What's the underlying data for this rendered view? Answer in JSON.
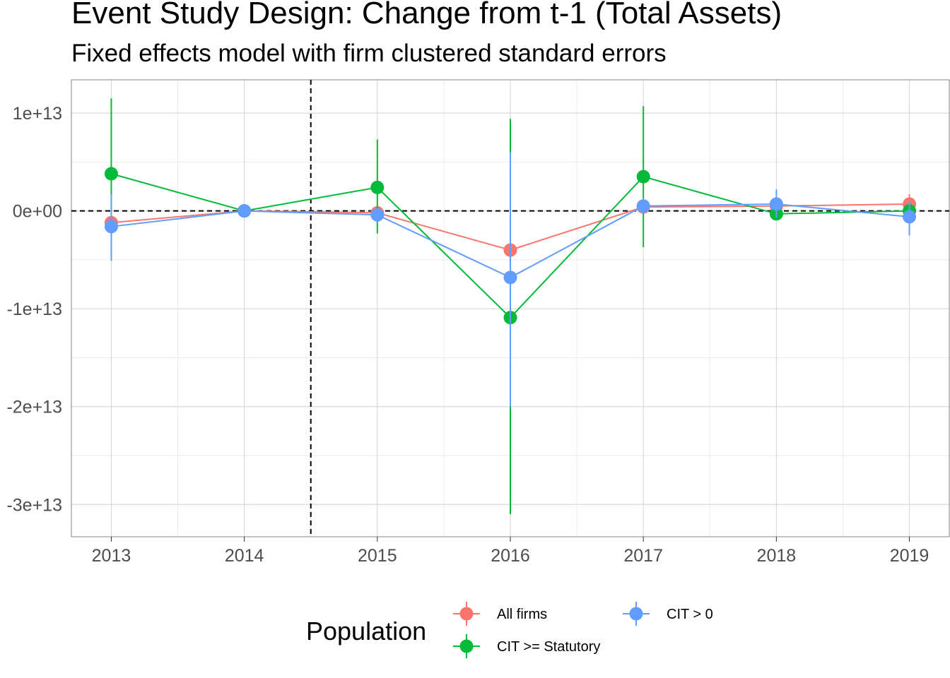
{
  "chart_data": {
    "type": "line",
    "title": "Event Study Design: Change from t-1 (Total Assets)",
    "subtitle": "Fixed effects model with firm clustered standard errors",
    "xlabel": "",
    "ylabel": "",
    "x": [
      2013,
      2014,
      2015,
      2016,
      2017,
      2018,
      2019
    ],
    "x_tick_labels": [
      "2013",
      "2014",
      "2015",
      "2016",
      "2017",
      "2018",
      "2019"
    ],
    "y_ticks": [
      10000000000000,
      0,
      -10000000000000,
      -20000000000000,
      -30000000000000
    ],
    "y_tick_labels": [
      "1e+13",
      "0e+00",
      "-1e+13",
      "-2e+13",
      "-3e+13"
    ],
    "xlim": [
      2012.7,
      2019.3
    ],
    "ylim": [
      -33300000000000,
      13400000000000
    ],
    "grid": true,
    "reference_lines": {
      "horizontal_y": 0,
      "vertical_x": 2014.5,
      "style": "dashed",
      "color": "#000000"
    },
    "legend": {
      "title": "Population",
      "position": "bottom"
    },
    "series": [
      {
        "name": "All firms",
        "color": "#F8766D",
        "values": [
          -1200000000000,
          0,
          -200000000000,
          -4000000000000,
          400000000000,
          500000000000,
          700000000000
        ],
        "lower": [
          -2000000000000,
          0,
          -600000000000,
          -7500000000000,
          -300000000000,
          100000000000,
          300000000000
        ],
        "upper": [
          -400000000000,
          0,
          200000000000,
          -500000000000,
          1100000000000,
          900000000000,
          1700000000000
        ]
      },
      {
        "name": "CIT >= Statutory",
        "color": "#00BA38",
        "values": [
          3800000000000,
          0,
          2400000000000,
          -10900000000000,
          3500000000000,
          -300000000000,
          0
        ],
        "lower": [
          -200000000000,
          0,
          -2300000000000,
          -31000000000000,
          -3700000000000,
          -800000000000,
          -400000000000
        ],
        "upper": [
          11500000000000,
          0,
          7300000000000,
          9400000000000,
          10700000000000,
          200000000000,
          400000000000
        ]
      },
      {
        "name": "CIT > 0",
        "color": "#619CFF",
        "values": [
          -1600000000000,
          0,
          -400000000000,
          -6800000000000,
          500000000000,
          700000000000,
          -600000000000
        ],
        "lower": [
          -5100000000000,
          0,
          -1200000000000,
          -20000000000000,
          -300000000000,
          -700000000000,
          -2500000000000
        ],
        "upper": [
          1700000000000,
          0,
          300000000000,
          6000000000000,
          1300000000000,
          2200000000000,
          1000000000000
        ]
      }
    ]
  }
}
